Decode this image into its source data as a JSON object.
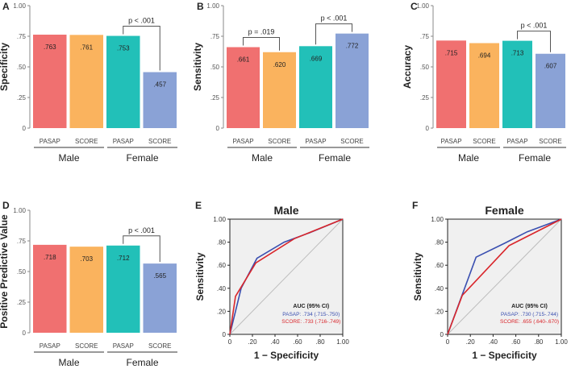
{
  "colors": {
    "red": "#f07070",
    "orange": "#fab35e",
    "teal": "#22c0b8",
    "blue": "#8aa2d6",
    "roc_pasap": "#3a4fb0",
    "roc_score": "#d9262b",
    "diag": "#bdbdbd"
  },
  "chart_data": [
    {
      "type": "bar",
      "panel": "A",
      "ylabel": "Specificity",
      "ylim": [
        0,
        1
      ],
      "yticks": [
        "0",
        ".25",
        ".50",
        ".75",
        "1.00"
      ],
      "categories": [
        "PASAP",
        "SCORE",
        "PASAP",
        "SCORE"
      ],
      "groups": [
        "Male",
        "Female"
      ],
      "values": [
        0.763,
        0.761,
        0.753,
        0.457
      ],
      "value_labels": [
        ".763",
        ".761",
        ".753",
        ".457"
      ],
      "annotations": [
        {
          "text": "p < .001",
          "from": 2,
          "to": 3
        }
      ]
    },
    {
      "type": "bar",
      "panel": "B",
      "ylabel": "Sensitivity",
      "ylim": [
        0,
        1
      ],
      "yticks": [
        "0",
        ".25",
        ".50",
        ".75",
        "1.00"
      ],
      "categories": [
        "PASAP",
        "SCORE",
        "PASAP",
        "SCORE"
      ],
      "groups": [
        "Male",
        "Female"
      ],
      "values": [
        0.661,
        0.62,
        0.669,
        0.772
      ],
      "value_labels": [
        ".661",
        ".620",
        ".669",
        ".772"
      ],
      "annotations": [
        {
          "text": "p = .019",
          "from": 0,
          "to": 1
        },
        {
          "text": "p < .001",
          "from": 2,
          "to": 3
        }
      ]
    },
    {
      "type": "bar",
      "panel": "C",
      "ylabel": "Accuracy",
      "ylim": [
        0,
        1
      ],
      "yticks": [
        "0",
        ".25",
        ".50",
        ".75",
        "1.00"
      ],
      "categories": [
        "PASAP",
        "SCORE",
        "PASAP",
        "SCORE"
      ],
      "groups": [
        "Male",
        "Female"
      ],
      "values": [
        0.715,
        0.694,
        0.713,
        0.607
      ],
      "value_labels": [
        ".715",
        ".694",
        ".713",
        ".607"
      ],
      "annotations": [
        {
          "text": "p < .001",
          "from": 2,
          "to": 3
        }
      ]
    },
    {
      "type": "bar",
      "panel": "D",
      "ylabel": "Positive Predictive Value",
      "ylim": [
        0,
        1
      ],
      "yticks": [
        "0",
        ".25",
        ".50",
        ".75",
        "1.00"
      ],
      "categories": [
        "PASAP",
        "SCORE",
        "PASAP",
        "SCORE"
      ],
      "groups": [
        "Male",
        "Female"
      ],
      "values": [
        0.718,
        0.703,
        0.712,
        0.565
      ],
      "value_labels": [
        ".718",
        ".703",
        ".712",
        ".565"
      ],
      "annotations": [
        {
          "text": "p < .001",
          "from": 2,
          "to": 3
        }
      ]
    },
    {
      "type": "line",
      "panel": "E",
      "title": "Male",
      "xlabel": "1 − Specificity",
      "ylabel": "Sensitivity",
      "xlim": [
        0,
        1
      ],
      "ylim": [
        0,
        1
      ],
      "xticks": [
        "0",
        ".20",
        ".40",
        ".60",
        ".80",
        "1.00"
      ],
      "yticks": [
        "0",
        ".20",
        ".40",
        ".60",
        ".80",
        "1.00"
      ],
      "legend_title": "AUC (95% CI)",
      "series": [
        {
          "name": "PASAP",
          "label": "PASAP: .734 (.715-.750)",
          "x": [
            0,
            0.1,
            0.24,
            0.48,
            0.7,
            1
          ],
          "y": [
            0,
            0.4,
            0.66,
            0.8,
            0.88,
            1
          ]
        },
        {
          "name": "SCORE",
          "label": "SCORE: .733 (.716-.749)",
          "x": [
            0,
            0.05,
            0.23,
            0.57,
            1
          ],
          "y": [
            0,
            0.33,
            0.62,
            0.83,
            1
          ]
        }
      ]
    },
    {
      "type": "line",
      "panel": "F",
      "title": "Female",
      "xlabel": "1 − Specificity",
      "ylabel": "Sensitivity",
      "xlim": [
        0,
        1
      ],
      "ylim": [
        0,
        1
      ],
      "xticks": [
        "0",
        ".20",
        ".40",
        ".60",
        ".80",
        "1.00"
      ],
      "yticks": [
        "0",
        ".20",
        ".40",
        ".60",
        ".80",
        "1.00"
      ],
      "legend_title": "AUC (95% CI)",
      "series": [
        {
          "name": "PASAP",
          "label": "PASAP: .730 (.715-.744)",
          "x": [
            0,
            0.25,
            0.5,
            0.7,
            1
          ],
          "y": [
            0,
            0.67,
            0.79,
            0.89,
            1
          ]
        },
        {
          "name": "SCORE",
          "label": "SCORE: .655 (.640-.670)",
          "x": [
            0,
            0.13,
            0.54,
            1
          ],
          "y": [
            0,
            0.34,
            0.77,
            1
          ]
        }
      ]
    }
  ]
}
